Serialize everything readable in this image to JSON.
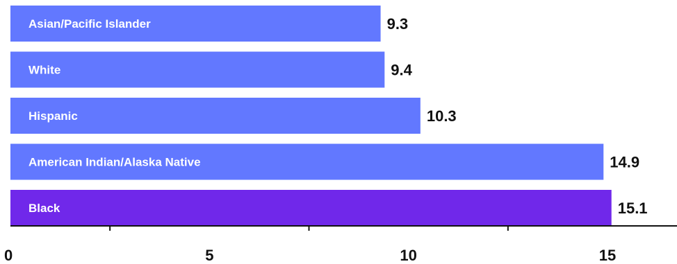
{
  "chart_data": {
    "type": "bar",
    "orientation": "horizontal",
    "categories": [
      "Asian/Pacific Islander",
      "White",
      "Hispanic",
      "American Indian/Alaska Native",
      "Black"
    ],
    "values": [
      9.3,
      9.4,
      10.3,
      14.9,
      15.1
    ],
    "value_labels": [
      "9.3",
      "9.4",
      "10.3",
      "14.9",
      "15.1"
    ],
    "highlight_category": "Black",
    "colors": {
      "default": "#6278FF",
      "highlight": "#7028EA",
      "axis": "#111111"
    },
    "xticks": [
      0,
      5,
      10,
      15
    ],
    "xtick_labels": [
      "0",
      "5",
      "10",
      "15"
    ],
    "minor_xticks": [
      2.5,
      7.5,
      12.5
    ],
    "xlim": [
      0,
      17
    ],
    "title": "",
    "xlabel": "",
    "ylabel": "",
    "grid": false
  }
}
